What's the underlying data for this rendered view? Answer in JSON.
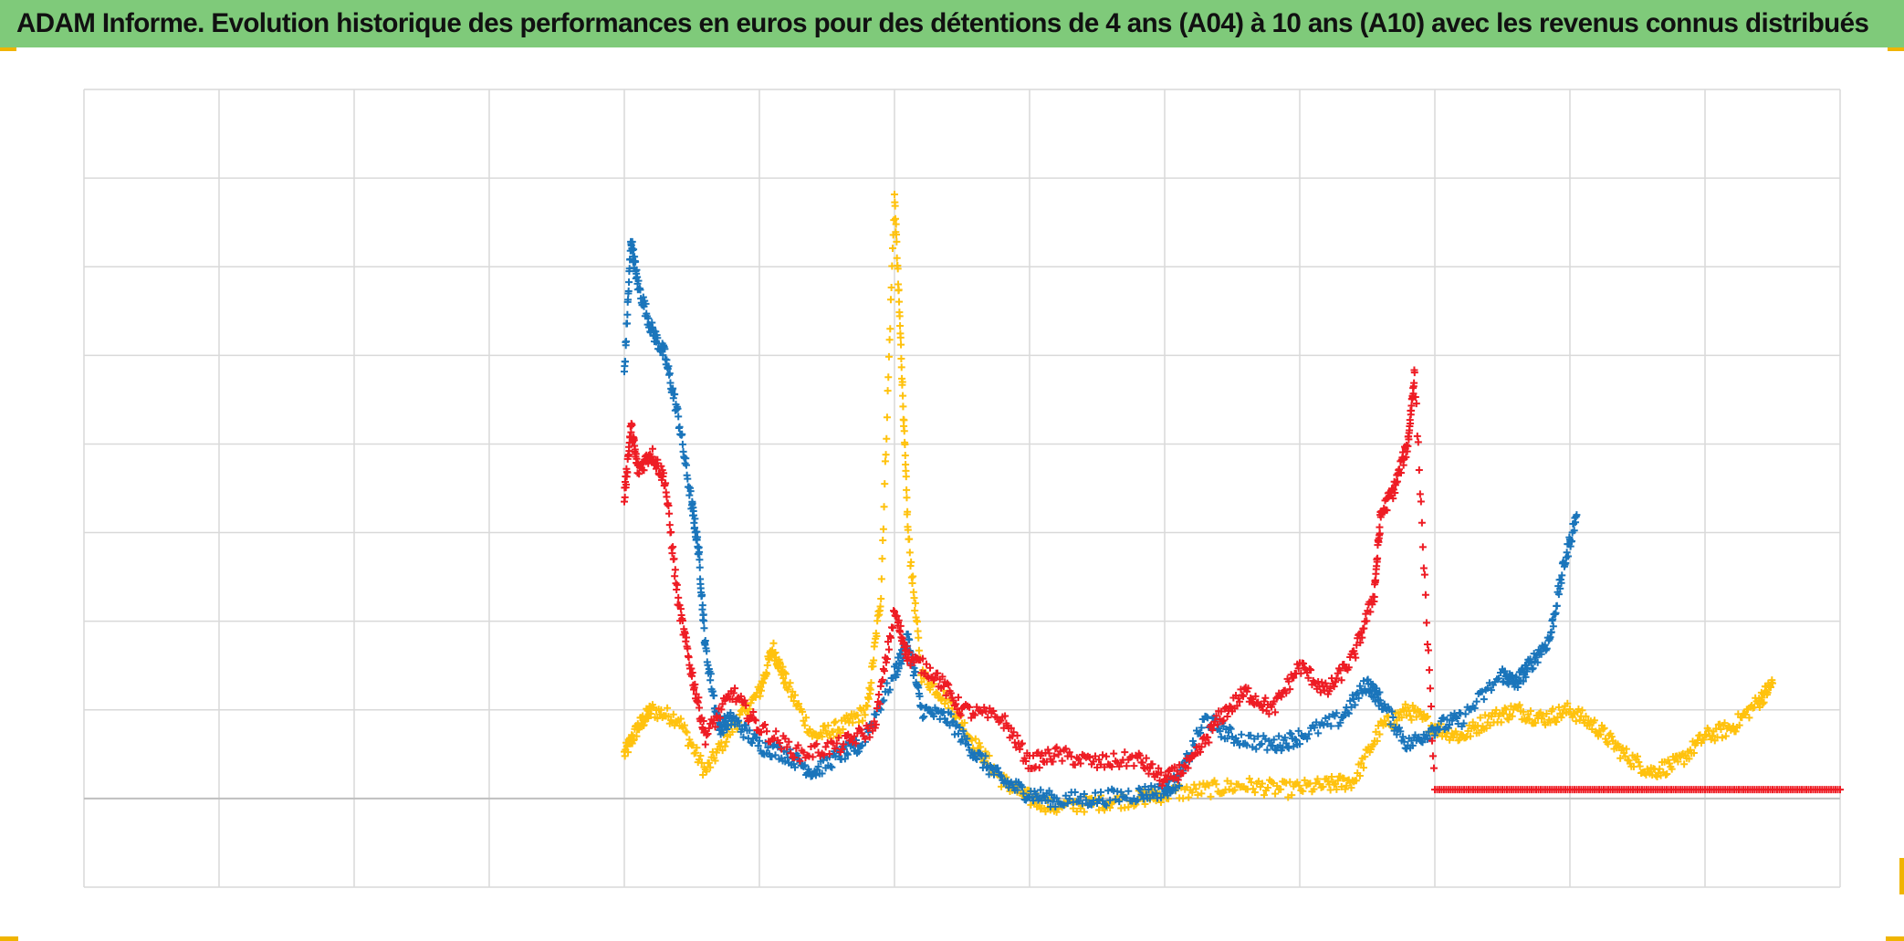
{
  "title": "ADAM Informe. Evolution historique des performances en euros pour des détentions de 4 ans (A04) à 10 ans (A10) avec les revenus connus distribués",
  "colors": {
    "title_bg": "#7fca7a",
    "accent_corner": "#f0b400",
    "grid": "#d9d9d9",
    "blue": "#1a75bb",
    "red": "#ee1c24",
    "yellow": "#ffc20e"
  },
  "chart_data": {
    "type": "scatter",
    "marker": "plus",
    "title": "ADAM Informe. Evolution historique des performances en euros pour des détentions de 4 ans (A04) à 10 ans (A10) avec les revenus connus distribués",
    "xlabel": "",
    "ylabel": "",
    "xlim": [
      0,
      13
    ],
    "ylim": [
      -1,
      8
    ],
    "grid": true,
    "legend": "none",
    "tick_labels_visible": false,
    "series": [
      {
        "name": "blue",
        "color": "#1a75bb",
        "points": [
          [
            4.0,
            4.8
          ],
          [
            4.05,
            6.3
          ],
          [
            4.1,
            5.8
          ],
          [
            4.2,
            5.3
          ],
          [
            4.3,
            5.0
          ],
          [
            4.4,
            4.3
          ],
          [
            4.5,
            3.3
          ],
          [
            4.55,
            2.8
          ],
          [
            4.6,
            1.7
          ],
          [
            4.7,
            0.8
          ],
          [
            4.8,
            0.9
          ],
          [
            5.0,
            0.6
          ],
          [
            5.2,
            0.5
          ],
          [
            5.4,
            0.3
          ],
          [
            5.6,
            0.5
          ],
          [
            5.75,
            0.6
          ],
          [
            6.0,
            1.4
          ],
          [
            6.1,
            1.8
          ],
          [
            6.2,
            1.0
          ],
          [
            6.4,
            0.9
          ],
          [
            6.6,
            0.5
          ],
          [
            6.8,
            0.2
          ],
          [
            7.0,
            0.05
          ],
          [
            7.2,
            -0.02
          ],
          [
            7.5,
            0.0
          ],
          [
            7.8,
            0.05
          ],
          [
            8.0,
            0.1
          ],
          [
            8.1,
            0.2
          ],
          [
            8.3,
            0.9
          ],
          [
            8.5,
            0.7
          ],
          [
            8.8,
            0.6
          ],
          [
            9.0,
            0.7
          ],
          [
            9.3,
            0.9
          ],
          [
            9.5,
            1.3
          ],
          [
            9.6,
            1.1
          ],
          [
            9.8,
            0.6
          ],
          [
            10.0,
            0.8
          ],
          [
            10.2,
            0.9
          ],
          [
            10.5,
            1.4
          ],
          [
            10.6,
            1.3
          ],
          [
            10.7,
            1.5
          ],
          [
            10.85,
            1.8
          ],
          [
            10.95,
            2.6
          ],
          [
            11.05,
            3.2
          ]
        ]
      },
      {
        "name": "red",
        "color": "#ee1c24",
        "points": [
          [
            4.0,
            3.4
          ],
          [
            4.05,
            4.2
          ],
          [
            4.1,
            3.7
          ],
          [
            4.2,
            3.9
          ],
          [
            4.3,
            3.6
          ],
          [
            4.4,
            2.2
          ],
          [
            4.5,
            1.4
          ],
          [
            4.6,
            0.7
          ],
          [
            4.8,
            1.2
          ],
          [
            5.0,
            0.8
          ],
          [
            5.3,
            0.5
          ],
          [
            5.6,
            0.6
          ],
          [
            5.85,
            0.8
          ],
          [
            6.0,
            2.1
          ],
          [
            6.1,
            1.6
          ],
          [
            6.3,
            1.4
          ],
          [
            6.5,
            1.0
          ],
          [
            6.8,
            0.9
          ],
          [
            7.0,
            0.4
          ],
          [
            7.2,
            0.5
          ],
          [
            7.5,
            0.4
          ],
          [
            7.8,
            0.45
          ],
          [
            8.0,
            0.2
          ],
          [
            8.2,
            0.4
          ],
          [
            8.4,
            0.9
          ],
          [
            8.6,
            1.2
          ],
          [
            8.8,
            1.0
          ],
          [
            9.0,
            1.5
          ],
          [
            9.2,
            1.2
          ],
          [
            9.4,
            1.6
          ],
          [
            9.55,
            2.3
          ],
          [
            9.6,
            3.2
          ],
          [
            9.7,
            3.5
          ],
          [
            9.8,
            4.0
          ],
          [
            9.85,
            4.8
          ],
          [
            10.0,
            0.1
          ],
          [
            11.0,
            0.1
          ],
          [
            12.0,
            0.1
          ],
          [
            13.0,
            0.1
          ]
        ]
      },
      {
        "name": "yellow",
        "color": "#ffc20e",
        "points": [
          [
            4.0,
            0.5
          ],
          [
            4.1,
            0.8
          ],
          [
            4.2,
            1.0
          ],
          [
            4.4,
            0.9
          ],
          [
            4.6,
            0.3
          ],
          [
            4.8,
            0.8
          ],
          [
            5.0,
            1.2
          ],
          [
            5.1,
            1.7
          ],
          [
            5.2,
            1.3
          ],
          [
            5.4,
            0.7
          ],
          [
            5.6,
            0.8
          ],
          [
            5.8,
            1.0
          ],
          [
            5.9,
            2.3
          ],
          [
            6.0,
            6.8
          ],
          [
            6.05,
            5.0
          ],
          [
            6.1,
            3.0
          ],
          [
            6.2,
            1.4
          ],
          [
            6.4,
            1.1
          ],
          [
            6.6,
            0.6
          ],
          [
            6.8,
            0.2
          ],
          [
            7.0,
            0.0
          ],
          [
            7.2,
            -0.1
          ],
          [
            7.5,
            -0.05
          ],
          [
            7.8,
            0.0
          ],
          [
            8.0,
            0.05
          ],
          [
            8.3,
            0.1
          ],
          [
            8.6,
            0.15
          ],
          [
            8.9,
            0.1
          ],
          [
            9.2,
            0.15
          ],
          [
            9.4,
            0.2
          ],
          [
            9.6,
            0.8
          ],
          [
            9.8,
            1.0
          ],
          [
            10.0,
            0.8
          ],
          [
            10.2,
            0.7
          ],
          [
            10.4,
            0.9
          ],
          [
            10.6,
            1.0
          ],
          [
            10.8,
            0.9
          ],
          [
            11.0,
            1.0
          ],
          [
            11.2,
            0.8
          ],
          [
            11.4,
            0.5
          ],
          [
            11.6,
            0.3
          ],
          [
            11.8,
            0.4
          ],
          [
            12.0,
            0.7
          ],
          [
            12.2,
            0.8
          ],
          [
            12.4,
            1.1
          ],
          [
            12.5,
            1.3
          ]
        ]
      }
    ]
  }
}
